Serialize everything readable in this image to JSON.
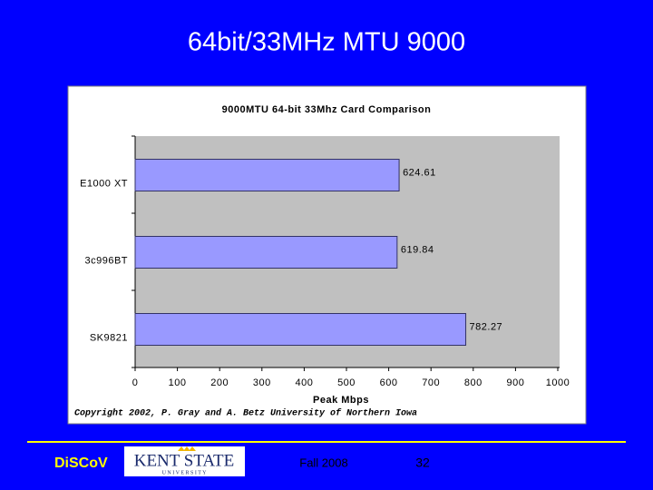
{
  "slide": {
    "title": "64bit/33MHz  MTU 9000",
    "brand": "DiSCoV",
    "logo_text": "KENT STATE",
    "logo_subtext": "U N I V E R S I T Y",
    "term": "Fall 2008",
    "page": "32"
  },
  "chart_data": {
    "type": "barh",
    "title": "9000MTU 64-bit 33Mhz Card Comparison",
    "categories": [
      "E1000 XT",
      "3c996BT",
      "SK9821"
    ],
    "values": [
      624.61,
      619.84,
      782.27
    ],
    "color": "#9999ff",
    "xlabel": "Peak Mbps",
    "xlim": [
      0,
      1000
    ],
    "xticks": [
      0,
      100,
      200,
      300,
      400,
      500,
      600,
      700,
      800,
      900,
      1000
    ],
    "annotation": "Copyright 2002, P. Gray and A. Betz  University of Northern Iowa"
  }
}
